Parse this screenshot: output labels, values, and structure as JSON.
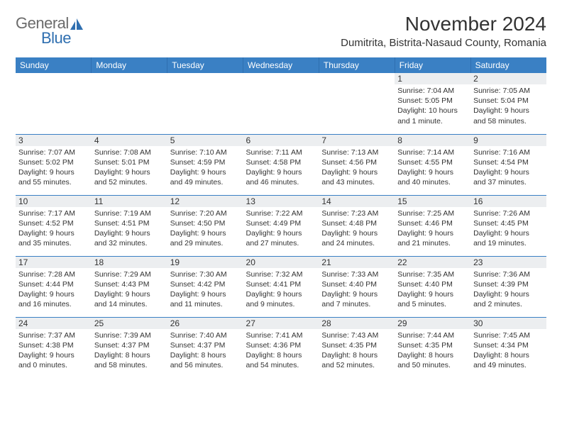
{
  "brand": {
    "name_gray": "General",
    "name_blue": "Blue"
  },
  "title": "November 2024",
  "location": "Dumitrita, Bistrita-Nasaud County, Romania",
  "day_headers": [
    "Sunday",
    "Monday",
    "Tuesday",
    "Wednesday",
    "Thursday",
    "Friday",
    "Saturday"
  ],
  "styles": {
    "header_bg": "#3a80c4",
    "header_text": "#ffffff",
    "row_divider": "#3a80c4",
    "daynum_bg": "#eceef0",
    "text_color": "#333333",
    "background": "#ffffff",
    "logo_gray": "#6b6b6b",
    "logo_blue": "#2f6fb0",
    "font_family": "Arial",
    "title_fontsize_pt": 21,
    "location_fontsize_pt": 11,
    "header_fontsize_pt": 9,
    "daynum_fontsize_pt": 9,
    "info_fontsize_pt": 8
  },
  "weeks": [
    [
      {
        "n": "",
        "sunrise": "",
        "sunset": "",
        "daylight": ""
      },
      {
        "n": "",
        "sunrise": "",
        "sunset": "",
        "daylight": ""
      },
      {
        "n": "",
        "sunrise": "",
        "sunset": "",
        "daylight": ""
      },
      {
        "n": "",
        "sunrise": "",
        "sunset": "",
        "daylight": ""
      },
      {
        "n": "",
        "sunrise": "",
        "sunset": "",
        "daylight": ""
      },
      {
        "n": "1",
        "sunrise": "Sunrise: 7:04 AM",
        "sunset": "Sunset: 5:05 PM",
        "daylight": "Daylight: 10 hours and 1 minute."
      },
      {
        "n": "2",
        "sunrise": "Sunrise: 7:05 AM",
        "sunset": "Sunset: 5:04 PM",
        "daylight": "Daylight: 9 hours and 58 minutes."
      }
    ],
    [
      {
        "n": "3",
        "sunrise": "Sunrise: 7:07 AM",
        "sunset": "Sunset: 5:02 PM",
        "daylight": "Daylight: 9 hours and 55 minutes."
      },
      {
        "n": "4",
        "sunrise": "Sunrise: 7:08 AM",
        "sunset": "Sunset: 5:01 PM",
        "daylight": "Daylight: 9 hours and 52 minutes."
      },
      {
        "n": "5",
        "sunrise": "Sunrise: 7:10 AM",
        "sunset": "Sunset: 4:59 PM",
        "daylight": "Daylight: 9 hours and 49 minutes."
      },
      {
        "n": "6",
        "sunrise": "Sunrise: 7:11 AM",
        "sunset": "Sunset: 4:58 PM",
        "daylight": "Daylight: 9 hours and 46 minutes."
      },
      {
        "n": "7",
        "sunrise": "Sunrise: 7:13 AM",
        "sunset": "Sunset: 4:56 PM",
        "daylight": "Daylight: 9 hours and 43 minutes."
      },
      {
        "n": "8",
        "sunrise": "Sunrise: 7:14 AM",
        "sunset": "Sunset: 4:55 PM",
        "daylight": "Daylight: 9 hours and 40 minutes."
      },
      {
        "n": "9",
        "sunrise": "Sunrise: 7:16 AM",
        "sunset": "Sunset: 4:54 PM",
        "daylight": "Daylight: 9 hours and 37 minutes."
      }
    ],
    [
      {
        "n": "10",
        "sunrise": "Sunrise: 7:17 AM",
        "sunset": "Sunset: 4:52 PM",
        "daylight": "Daylight: 9 hours and 35 minutes."
      },
      {
        "n": "11",
        "sunrise": "Sunrise: 7:19 AM",
        "sunset": "Sunset: 4:51 PM",
        "daylight": "Daylight: 9 hours and 32 minutes."
      },
      {
        "n": "12",
        "sunrise": "Sunrise: 7:20 AM",
        "sunset": "Sunset: 4:50 PM",
        "daylight": "Daylight: 9 hours and 29 minutes."
      },
      {
        "n": "13",
        "sunrise": "Sunrise: 7:22 AM",
        "sunset": "Sunset: 4:49 PM",
        "daylight": "Daylight: 9 hours and 27 minutes."
      },
      {
        "n": "14",
        "sunrise": "Sunrise: 7:23 AM",
        "sunset": "Sunset: 4:48 PM",
        "daylight": "Daylight: 9 hours and 24 minutes."
      },
      {
        "n": "15",
        "sunrise": "Sunrise: 7:25 AM",
        "sunset": "Sunset: 4:46 PM",
        "daylight": "Daylight: 9 hours and 21 minutes."
      },
      {
        "n": "16",
        "sunrise": "Sunrise: 7:26 AM",
        "sunset": "Sunset: 4:45 PM",
        "daylight": "Daylight: 9 hours and 19 minutes."
      }
    ],
    [
      {
        "n": "17",
        "sunrise": "Sunrise: 7:28 AM",
        "sunset": "Sunset: 4:44 PM",
        "daylight": "Daylight: 9 hours and 16 minutes."
      },
      {
        "n": "18",
        "sunrise": "Sunrise: 7:29 AM",
        "sunset": "Sunset: 4:43 PM",
        "daylight": "Daylight: 9 hours and 14 minutes."
      },
      {
        "n": "19",
        "sunrise": "Sunrise: 7:30 AM",
        "sunset": "Sunset: 4:42 PM",
        "daylight": "Daylight: 9 hours and 11 minutes."
      },
      {
        "n": "20",
        "sunrise": "Sunrise: 7:32 AM",
        "sunset": "Sunset: 4:41 PM",
        "daylight": "Daylight: 9 hours and 9 minutes."
      },
      {
        "n": "21",
        "sunrise": "Sunrise: 7:33 AM",
        "sunset": "Sunset: 4:40 PM",
        "daylight": "Daylight: 9 hours and 7 minutes."
      },
      {
        "n": "22",
        "sunrise": "Sunrise: 7:35 AM",
        "sunset": "Sunset: 4:40 PM",
        "daylight": "Daylight: 9 hours and 5 minutes."
      },
      {
        "n": "23",
        "sunrise": "Sunrise: 7:36 AM",
        "sunset": "Sunset: 4:39 PM",
        "daylight": "Daylight: 9 hours and 2 minutes."
      }
    ],
    [
      {
        "n": "24",
        "sunrise": "Sunrise: 7:37 AM",
        "sunset": "Sunset: 4:38 PM",
        "daylight": "Daylight: 9 hours and 0 minutes."
      },
      {
        "n": "25",
        "sunrise": "Sunrise: 7:39 AM",
        "sunset": "Sunset: 4:37 PM",
        "daylight": "Daylight: 8 hours and 58 minutes."
      },
      {
        "n": "26",
        "sunrise": "Sunrise: 7:40 AM",
        "sunset": "Sunset: 4:37 PM",
        "daylight": "Daylight: 8 hours and 56 minutes."
      },
      {
        "n": "27",
        "sunrise": "Sunrise: 7:41 AM",
        "sunset": "Sunset: 4:36 PM",
        "daylight": "Daylight: 8 hours and 54 minutes."
      },
      {
        "n": "28",
        "sunrise": "Sunrise: 7:43 AM",
        "sunset": "Sunset: 4:35 PM",
        "daylight": "Daylight: 8 hours and 52 minutes."
      },
      {
        "n": "29",
        "sunrise": "Sunrise: 7:44 AM",
        "sunset": "Sunset: 4:35 PM",
        "daylight": "Daylight: 8 hours and 50 minutes."
      },
      {
        "n": "30",
        "sunrise": "Sunrise: 7:45 AM",
        "sunset": "Sunset: 4:34 PM",
        "daylight": "Daylight: 8 hours and 49 minutes."
      }
    ]
  ]
}
